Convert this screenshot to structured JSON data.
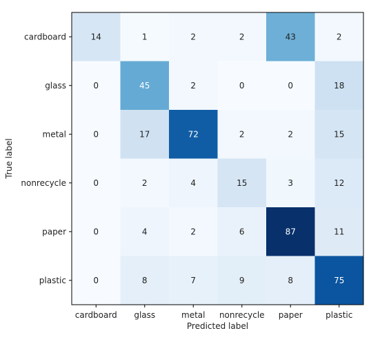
{
  "chart_data": {
    "type": "heatmap",
    "title": "",
    "xlabel": "Predicted label",
    "ylabel": "True label",
    "x_categories": [
      "cardboard",
      "glass",
      "metal",
      "nonrecycle",
      "paper",
      "plastic"
    ],
    "y_categories": [
      "cardboard",
      "glass",
      "metal",
      "nonrecycle",
      "paper",
      "plastic"
    ],
    "values": [
      [
        14,
        1,
        2,
        2,
        43,
        2
      ],
      [
        0,
        45,
        2,
        0,
        0,
        18
      ],
      [
        0,
        17,
        72,
        2,
        2,
        15
      ],
      [
        0,
        2,
        4,
        15,
        3,
        12
      ],
      [
        0,
        4,
        2,
        6,
        87,
        11
      ],
      [
        0,
        8,
        7,
        9,
        8,
        75
      ]
    ],
    "colormap": "Blues",
    "color_range": [
      0,
      87
    ],
    "colors": {
      "low": "#f7fbff",
      "high": "#08306b"
    },
    "grid": false,
    "legend": "none"
  }
}
